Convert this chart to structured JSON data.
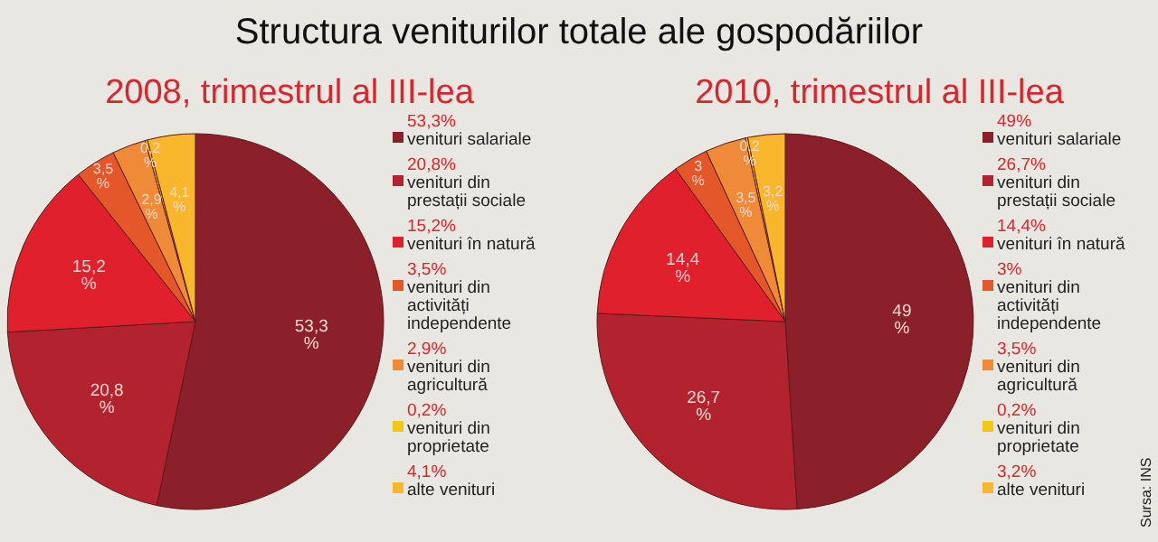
{
  "chart_data": [
    {
      "type": "pie",
      "title": "Structura veniturilor totale ale gospodăriilor",
      "subtitle": "2008, trimestrul al III-lea",
      "legend": "right",
      "categories": [
        "venituri salariale",
        "venituri din prestații sociale",
        "venituri în natură",
        "venituri din activități independente",
        "venituri din agricultură",
        "venituri din proprietate",
        "alte venituri"
      ],
      "values": [
        53.3,
        20.8,
        15.2,
        3.5,
        2.9,
        0.2,
        4.1
      ],
      "value_labels": [
        "53,3%",
        "20,8%",
        "15,2%",
        "3,5%",
        "2,9%",
        "0,2%",
        "4,1%"
      ],
      "colors": [
        "#8b1f2a",
        "#b3232f",
        "#e1202e",
        "#e4572a",
        "#ee8a38",
        "#f2c814",
        "#f7b62b"
      ]
    },
    {
      "type": "pie",
      "title": "2010, trimestrul al III-lea",
      "legend": "right",
      "annotations": [
        "Sursa: INS"
      ],
      "categories": [
        "venituri salariale",
        "venituri din prestații sociale",
        "venituri în natură",
        "venituri din activități independente",
        "venituri din agricultură",
        "venituri din proprietate",
        "alte venituri"
      ],
      "values": [
        49,
        26.7,
        14.4,
        3,
        3.5,
        0.2,
        3.2
      ],
      "value_labels": [
        "49%",
        "26,7%",
        "14,4%",
        "3%",
        "3,5%",
        "0,2%",
        "3,2%"
      ],
      "colors": [
        "#8b1f2a",
        "#b3232f",
        "#e1202e",
        "#e4572a",
        "#ee8a38",
        "#f2c814",
        "#f7b62b"
      ]
    }
  ]
}
